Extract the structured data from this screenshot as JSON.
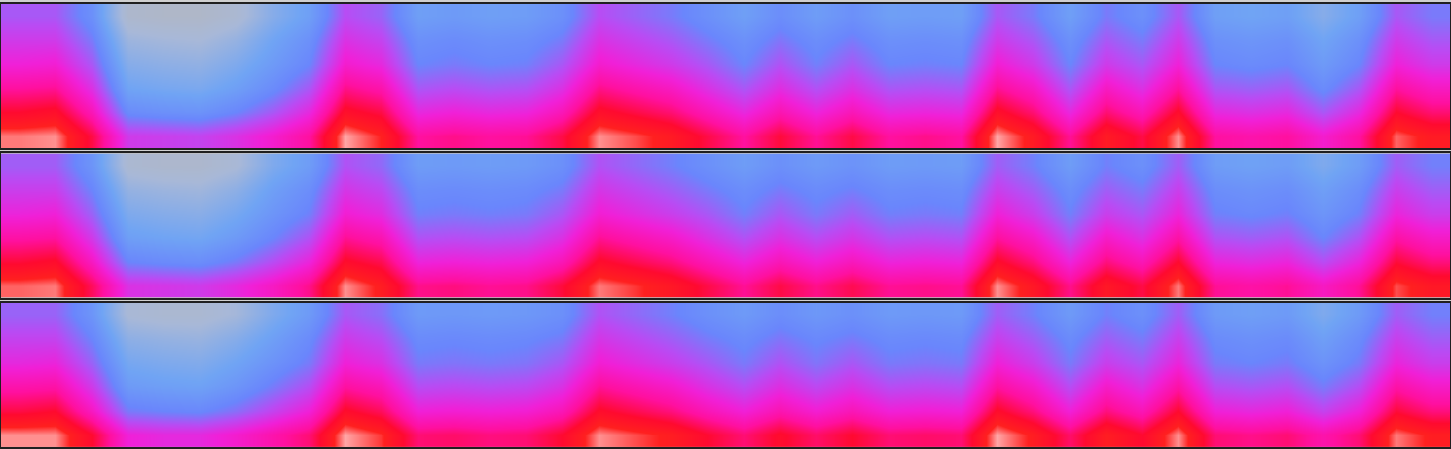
{
  "chart_data": [
    {
      "type": "heatmap",
      "tick_labels": false,
      "zlim": [
        0,
        100
      ],
      "cells": [
        [
          94,
          95,
          80,
          56,
          55,
          54,
          58,
          64,
          72,
          96,
          90,
          72,
          74,
          72,
          73,
          80,
          95,
          92,
          88,
          80,
          72,
          81,
          73,
          80,
          72,
          74,
          72,
          96,
          88,
          73,
          88,
          80,
          95,
          72,
          70,
          72,
          64,
          72,
          93,
          88
        ],
        [
          82,
          84,
          68,
          40,
          38,
          37,
          42,
          50,
          60,
          84,
          80,
          60,
          62,
          60,
          61,
          68,
          84,
          80,
          76,
          68,
          60,
          69,
          61,
          68,
          60,
          61,
          60,
          84,
          76,
          60,
          76,
          68,
          83,
          60,
          58,
          60,
          50,
          60,
          82,
          76
        ],
        [
          72,
          73,
          58,
          30,
          28,
          27,
          32,
          40,
          50,
          74,
          70,
          50,
          52,
          50,
          51,
          58,
          74,
          70,
          66,
          58,
          50,
          59,
          51,
          58,
          50,
          51,
          50,
          73,
          66,
          50,
          66,
          58,
          72,
          50,
          48,
          50,
          40,
          50,
          72,
          66
        ],
        [
          62,
          63,
          50,
          24,
          22,
          21,
          26,
          34,
          42,
          64,
          60,
          42,
          44,
          42,
          43,
          50,
          64,
          60,
          56,
          50,
          42,
          51,
          43,
          50,
          42,
          43,
          42,
          63,
          56,
          42,
          56,
          50,
          62,
          42,
          40,
          42,
          34,
          42,
          62,
          56
        ],
        [
          56,
          56,
          44,
          18,
          16,
          15,
          20,
          30,
          38,
          58,
          54,
          38,
          40,
          38,
          39,
          44,
          58,
          54,
          50,
          44,
          38,
          45,
          39,
          44,
          38,
          39,
          38,
          56,
          50,
          38,
          50,
          44,
          56,
          38,
          36,
          38,
          30,
          38,
          56,
          50
        ],
        [
          50,
          50,
          38,
          10,
          8,
          8,
          12,
          24,
          32,
          52,
          48,
          32,
          34,
          32,
          33,
          38,
          52,
          48,
          44,
          38,
          32,
          39,
          33,
          38,
          32,
          33,
          32,
          50,
          44,
          32,
          44,
          38,
          50,
          32,
          30,
          32,
          24,
          32,
          50,
          44
        ]
      ]
    },
    {
      "type": "heatmap",
      "tick_labels": false,
      "zlim": [
        0,
        100
      ],
      "cells": [
        [
          93,
          94,
          78,
          58,
          57,
          56,
          60,
          66,
          74,
          95,
          89,
          74,
          75,
          73,
          74,
          81,
          94,
          91,
          87,
          80,
          73,
          80,
          74,
          79,
          73,
          74,
          73,
          95,
          87,
          74,
          87,
          80,
          94,
          73,
          71,
          73,
          66,
          73,
          92,
          87
        ],
        [
          81,
          83,
          66,
          42,
          40,
          39,
          44,
          52,
          61,
          83,
          79,
          61,
          62,
          61,
          62,
          68,
          83,
          79,
          75,
          68,
          61,
          68,
          62,
          67,
          61,
          62,
          61,
          83,
          75,
          61,
          75,
          68,
          82,
          61,
          59,
          61,
          52,
          61,
          81,
          75
        ],
        [
          71,
          72,
          56,
          32,
          30,
          29,
          34,
          42,
          51,
          73,
          69,
          51,
          52,
          51,
          52,
          58,
          73,
          69,
          65,
          58,
          51,
          58,
          52,
          57,
          51,
          52,
          51,
          72,
          65,
          51,
          65,
          58,
          71,
          51,
          49,
          51,
          42,
          51,
          71,
          65
        ],
        [
          61,
          62,
          48,
          26,
          24,
          23,
          28,
          36,
          43,
          63,
          59,
          43,
          44,
          43,
          44,
          50,
          63,
          59,
          55,
          50,
          43,
          50,
          44,
          49,
          43,
          44,
          43,
          62,
          55,
          43,
          55,
          50,
          61,
          43,
          41,
          43,
          36,
          43,
          61,
          55
        ],
        [
          55,
          55,
          42,
          20,
          18,
          17,
          22,
          32,
          39,
          57,
          53,
          39,
          40,
          39,
          40,
          44,
          57,
          53,
          49,
          44,
          39,
          44,
          40,
          43,
          39,
          40,
          39,
          55,
          49,
          39,
          49,
          44,
          55,
          39,
          37,
          39,
          32,
          39,
          55,
          49
        ],
        [
          49,
          49,
          36,
          12,
          10,
          10,
          14,
          26,
          33,
          51,
          47,
          33,
          34,
          33,
          34,
          38,
          51,
          47,
          43,
          38,
          33,
          38,
          34,
          37,
          33,
          34,
          33,
          49,
          43,
          33,
          43,
          38,
          49,
          33,
          31,
          33,
          26,
          33,
          49,
          43
        ]
      ]
    },
    {
      "type": "heatmap",
      "tick_labels": false,
      "zlim": [
        0,
        100
      ],
      "cells": [
        [
          95,
          95,
          82,
          62,
          60,
          60,
          64,
          70,
          76,
          96,
          91,
          76,
          77,
          75,
          76,
          82,
          95,
          92,
          89,
          82,
          76,
          83,
          77,
          82,
          76,
          77,
          76,
          96,
          89,
          77,
          89,
          82,
          95,
          76,
          74,
          76,
          70,
          76,
          94,
          89
        ],
        [
          80,
          82,
          66,
          44,
          42,
          41,
          46,
          54,
          62,
          83,
          78,
          62,
          63,
          62,
          63,
          68,
          83,
          79,
          75,
          68,
          62,
          69,
          63,
          68,
          62,
          63,
          62,
          83,
          75,
          62,
          75,
          68,
          82,
          62,
          60,
          62,
          54,
          62,
          81,
          75
        ],
        [
          70,
          71,
          56,
          34,
          32,
          31,
          36,
          44,
          52,
          72,
          68,
          52,
          53,
          52,
          53,
          58,
          73,
          69,
          65,
          58,
          52,
          59,
          53,
          58,
          52,
          53,
          52,
          72,
          65,
          52,
          65,
          58,
          71,
          52,
          50,
          52,
          44,
          52,
          71,
          65
        ],
        [
          60,
          61,
          48,
          28,
          26,
          25,
          30,
          37,
          44,
          62,
          58,
          44,
          45,
          44,
          45,
          50,
          63,
          59,
          55,
          50,
          44,
          51,
          45,
          50,
          44,
          45,
          44,
          62,
          55,
          44,
          55,
          50,
          61,
          44,
          42,
          44,
          37,
          44,
          61,
          55
        ],
        [
          54,
          54,
          42,
          22,
          20,
          19,
          24,
          32,
          40,
          56,
          52,
          40,
          41,
          40,
          41,
          44,
          57,
          53,
          49,
          44,
          40,
          45,
          41,
          44,
          40,
          41,
          40,
          55,
          49,
          40,
          49,
          44,
          55,
          40,
          38,
          40,
          32,
          40,
          55,
          49
        ],
        [
          48,
          48,
          36,
          14,
          12,
          12,
          16,
          26,
          34,
          50,
          46,
          34,
          35,
          34,
          35,
          38,
          51,
          47,
          43,
          38,
          34,
          39,
          35,
          38,
          34,
          35,
          34,
          49,
          43,
          34,
          43,
          38,
          49,
          34,
          32,
          34,
          26,
          34,
          49,
          43
        ]
      ]
    }
  ]
}
